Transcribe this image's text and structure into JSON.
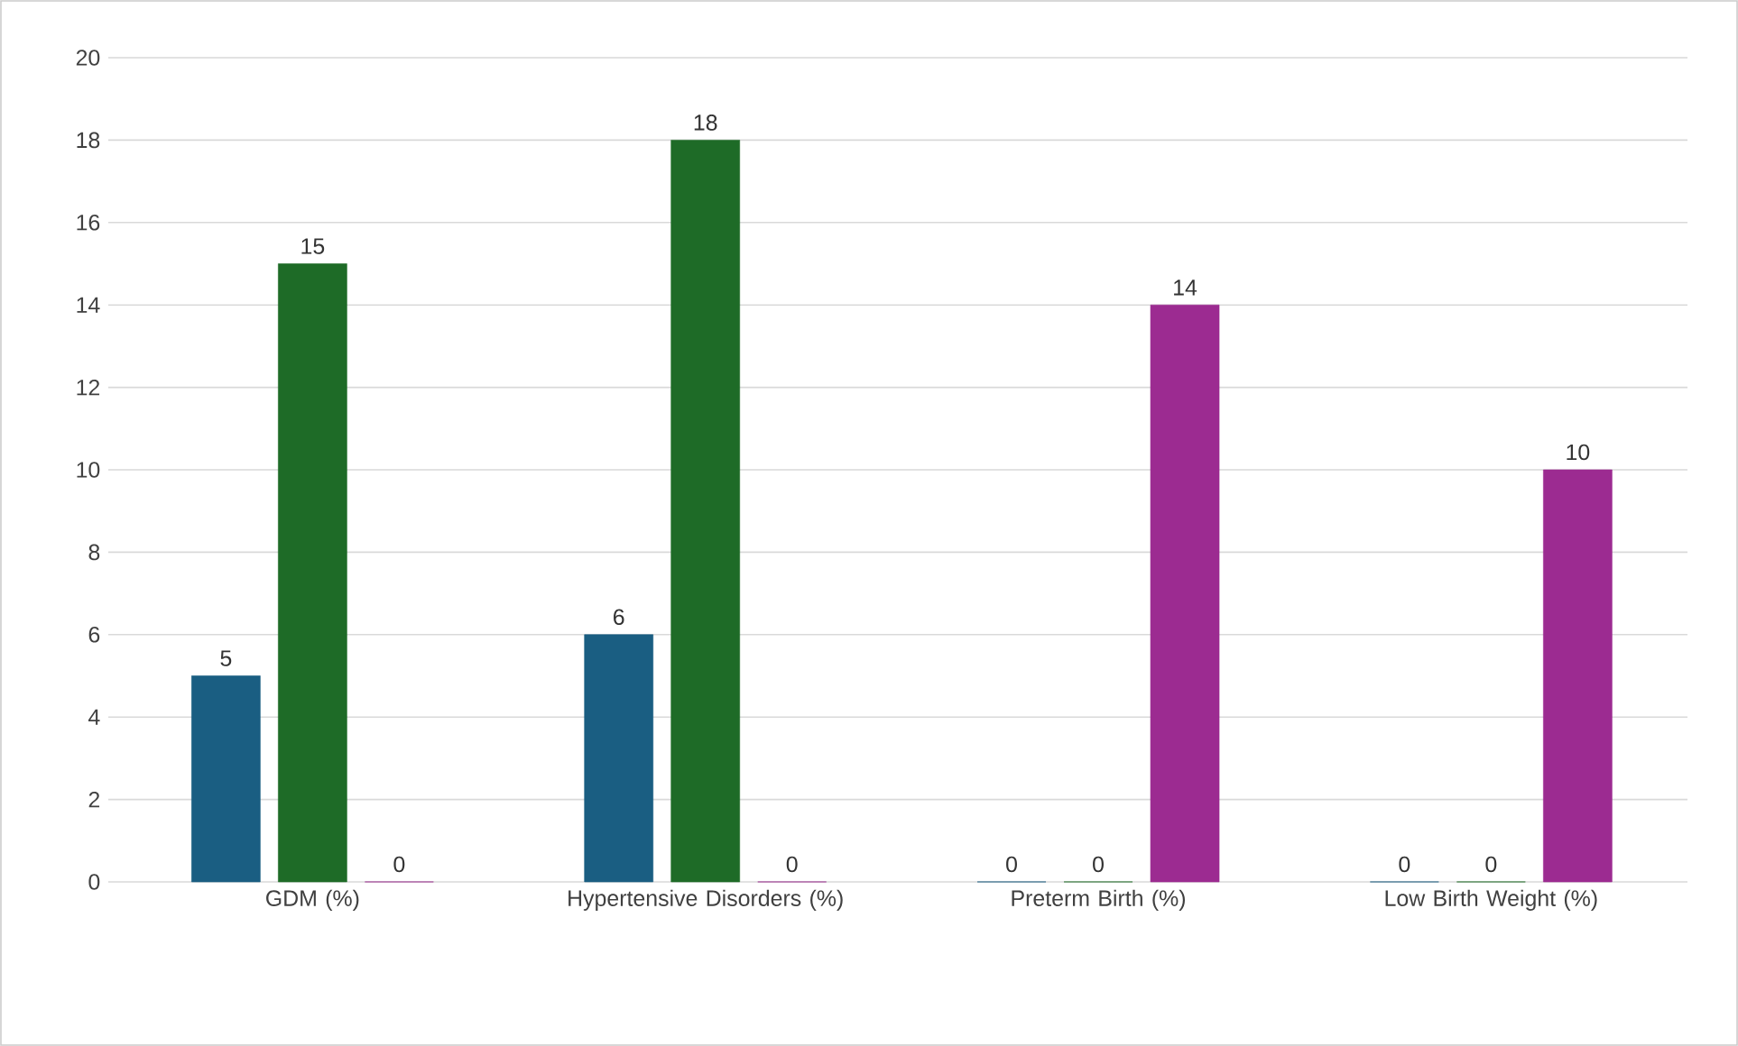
{
  "chart_data": {
    "type": "bar",
    "categories": [
      "GDM (%)",
      "Hypertensive Disorders (%)",
      "Preterm Birth (%)",
      "Low Birth Weight (%)"
    ],
    "series": [
      {
        "color": "#1a5e82",
        "values": [
          5,
          6,
          0,
          0
        ]
      },
      {
        "color": "#1e6b27",
        "values": [
          15,
          18,
          0,
          0
        ]
      },
      {
        "color": "#9c2b91",
        "values": [
          0,
          0,
          14,
          10
        ]
      }
    ],
    "ylim": [
      0,
      20
    ],
    "yticks": [
      0,
      2,
      4,
      6,
      8,
      10,
      12,
      14,
      16,
      18,
      20
    ],
    "grid": "y",
    "data_labels": true
  }
}
